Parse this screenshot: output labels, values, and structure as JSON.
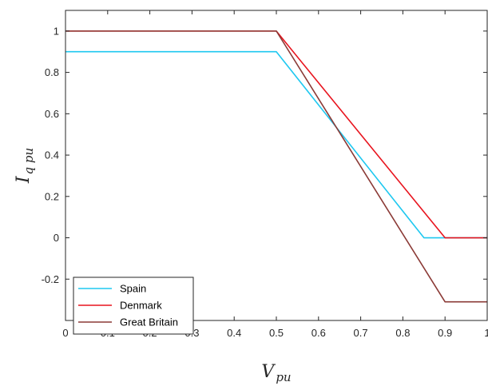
{
  "chart_data": {
    "type": "line",
    "title": "",
    "xlabel": "V",
    "xlabel_sub": "pu",
    "ylabel": "I",
    "ylabel_sub": "q pu",
    "xlim": [
      0,
      1
    ],
    "ylim": [
      -0.4,
      1.1
    ],
    "xticks": [
      0,
      0.1,
      0.2,
      0.3,
      0.4,
      0.5,
      0.6,
      0.7,
      0.8,
      0.9,
      1
    ],
    "xtick_labels": [
      "0",
      "0.1",
      "0.2",
      "0.3",
      "0.4",
      "0.5",
      "0.6",
      "0.7",
      "0.8",
      "0.9",
      "1"
    ],
    "yticks": [
      -0.2,
      0,
      0.2,
      0.4,
      0.6,
      0.8,
      1
    ],
    "ytick_labels": [
      "-0.2",
      "0",
      "0.2",
      "0.4",
      "0.6",
      "0.8",
      "1"
    ],
    "grid": false,
    "legend_position": "bottom-left",
    "series": [
      {
        "name": "Spain",
        "color": "#1ec8f0",
        "x": [
          0,
          0.5,
          0.85,
          0.9,
          1
        ],
        "y": [
          0.9,
          0.9,
          0,
          0,
          0
        ]
      },
      {
        "name": "Denmark",
        "color": "#e8141e",
        "x": [
          0,
          0.5,
          0.9,
          1
        ],
        "y": [
          1,
          1,
          0,
          0
        ]
      },
      {
        "name": "Great Britain",
        "color": "#8b3a36",
        "x": [
          0,
          0.5,
          0.9,
          1
        ],
        "y": [
          1,
          1,
          -0.31,
          -0.31
        ]
      }
    ]
  }
}
